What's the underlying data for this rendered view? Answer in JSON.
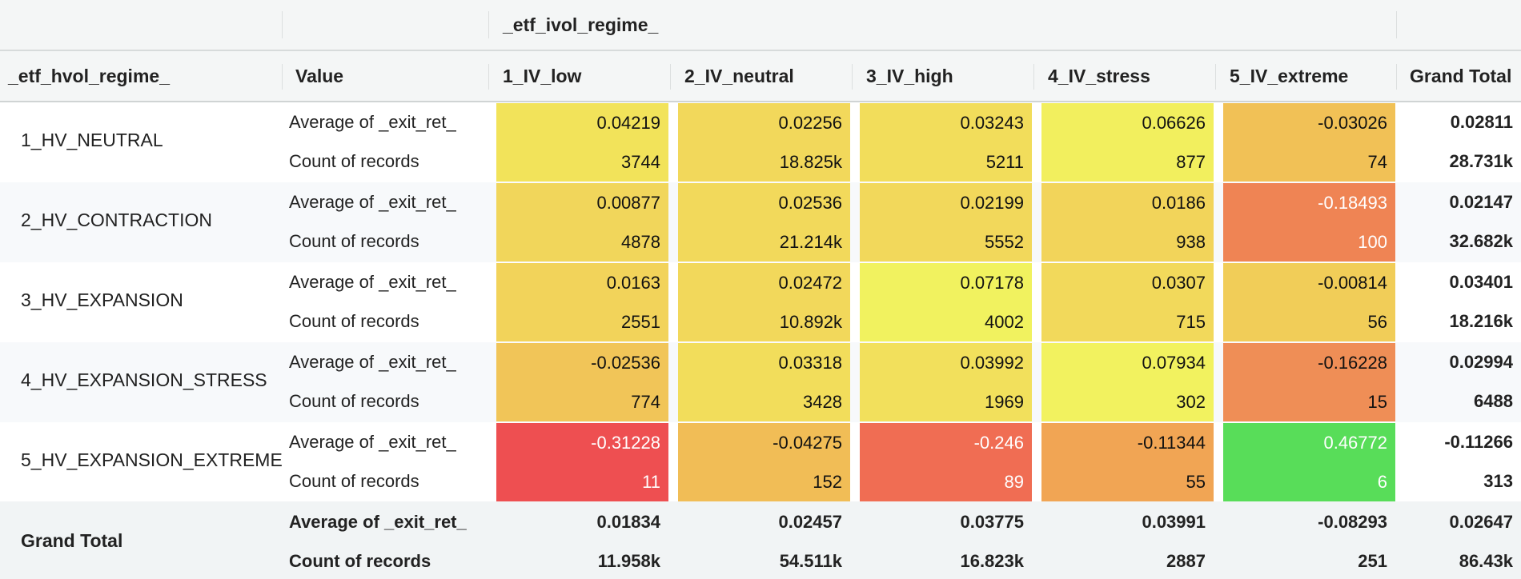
{
  "header": {
    "column_field": "_etf_ivol_regime_",
    "row_field": "_etf_hvol_regime_",
    "value_header": "Value",
    "columns": [
      "1_IV_low",
      "2_IV_neutral",
      "3_IV_high",
      "4_IV_stress",
      "5_IV_extreme"
    ],
    "grand_total_header": "Grand Total"
  },
  "measure_labels": [
    "Average of _exit_ret_",
    "Count of records"
  ],
  "rows": [
    {
      "label": "1_HV_NEUTRAL",
      "avg": [
        "0.04219",
        "0.02256",
        "0.03243",
        "0.06626",
        "-0.03026"
      ],
      "count": [
        "3744",
        "18.825k",
        "5211",
        "877",
        "74"
      ],
      "grand_total": {
        "avg": "0.02811",
        "count": "28.731k"
      }
    },
    {
      "label": "2_HV_CONTRACTION",
      "avg": [
        "0.00877",
        "0.02536",
        "0.02199",
        "0.0186",
        "-0.18493"
      ],
      "count": [
        "4878",
        "21.214k",
        "5552",
        "938",
        "100"
      ],
      "grand_total": {
        "avg": "0.02147",
        "count": "32.682k"
      }
    },
    {
      "label": "3_HV_EXPANSION",
      "avg": [
        "0.0163",
        "0.02472",
        "0.07178",
        "0.0307",
        "-0.00814"
      ],
      "count": [
        "2551",
        "10.892k",
        "4002",
        "715",
        "56"
      ],
      "grand_total": {
        "avg": "0.03401",
        "count": "18.216k"
      }
    },
    {
      "label": "4_HV_EXPANSION_STRESS",
      "avg": [
        "-0.02536",
        "0.03318",
        "0.03992",
        "0.07934",
        "-0.16228"
      ],
      "count": [
        "774",
        "3428",
        "1969",
        "302",
        "15"
      ],
      "grand_total": {
        "avg": "0.02994",
        "count": "6488"
      }
    },
    {
      "label": "5_HV_EXPANSION_EXTREME",
      "avg": [
        "-0.31228",
        "-0.04275",
        "-0.246",
        "-0.11344",
        "0.46772"
      ],
      "count": [
        "11",
        "152",
        "89",
        "55",
        "6"
      ],
      "grand_total": {
        "avg": "-0.11266",
        "count": "313"
      }
    }
  ],
  "cell_colors": [
    [
      "#f2e35a",
      "#f2d85b",
      "#f2dd5b",
      "#f2ef5e",
      "#f1c156"
    ],
    [
      "#f1d65b",
      "#f2d95b",
      "#f2d85b",
      "#f2d45a",
      "#ef8454"
    ],
    [
      "#f2d35a",
      "#f2d85b",
      "#f1f25f",
      "#f2d95b",
      "#f1cd58"
    ],
    [
      "#f1c558",
      "#f2dd5b",
      "#f2e05c",
      "#f2f25f",
      "#ef8e56"
    ],
    [
      "#ee4f51",
      "#f1bd56",
      "#f06d53",
      "#f1a554",
      "#58dd59"
    ]
  ],
  "light_text_cells": [
    [
      false,
      false,
      false,
      false,
      false
    ],
    [
      false,
      false,
      false,
      false,
      true
    ],
    [
      false,
      false,
      false,
      false,
      false
    ],
    [
      false,
      false,
      false,
      false,
      false
    ],
    [
      true,
      false,
      true,
      false,
      true
    ]
  ],
  "grand_total_row": {
    "label": "Grand Total",
    "measure_labels": [
      "Average of _exit_ret_",
      "Count of records"
    ],
    "avg": [
      "0.01834",
      "0.02457",
      "0.03775",
      "0.03991",
      "-0.08293"
    ],
    "count": [
      "11.958k",
      "54.511k",
      "16.823k",
      "2887",
      "251"
    ],
    "grand_total": {
      "avg": "0.02647",
      "count": "86.43k"
    }
  }
}
